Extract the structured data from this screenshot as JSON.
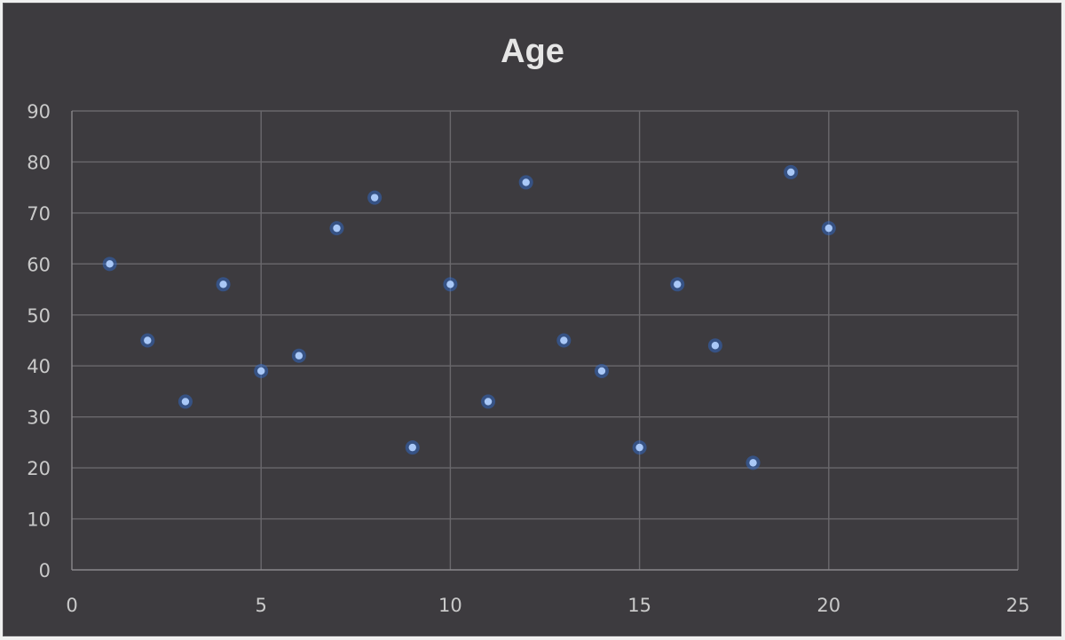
{
  "chart_data": {
    "type": "scatter",
    "title": "Age",
    "xlabel": "",
    "ylabel": "",
    "xlim": [
      0,
      25
    ],
    "ylim": [
      0,
      90
    ],
    "x_ticks": [
      0,
      5,
      10,
      15,
      20,
      25
    ],
    "y_ticks": [
      0,
      10,
      20,
      30,
      40,
      50,
      60,
      70,
      80,
      90
    ],
    "grid": true,
    "legend": "none",
    "colors": {
      "background": "#3d3b3f",
      "marker": "#a9c8f7",
      "marker_glow": "#2f6fd9",
      "grid": "#6a686c",
      "text": "#c9c9c9"
    },
    "series": [
      {
        "x": [
          1,
          2,
          3,
          4,
          5,
          6,
          7,
          8,
          9,
          10,
          11,
          12,
          13,
          14,
          15,
          16,
          17,
          18,
          19,
          20
        ],
        "y": [
          60,
          45,
          33,
          56,
          39,
          42,
          67,
          73,
          24,
          56,
          33,
          76,
          45,
          39,
          24,
          56,
          44,
          21,
          78,
          67
        ]
      }
    ]
  }
}
